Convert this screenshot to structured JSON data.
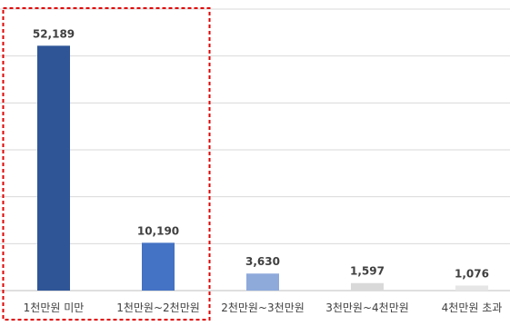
{
  "chart_data": {
    "type": "bar",
    "title": "",
    "xlabel": "",
    "ylabel": "",
    "ylim": [
      0,
      60000
    ],
    "grid": true,
    "categories": [
      "1천만원 미만",
      "1천만원~2천만원",
      "2천만원~3천만원",
      "3천만원~4천만원",
      "4천만원 초과"
    ],
    "values": [
      52189,
      10190,
      3630,
      1597,
      1076
    ],
    "data_labels": [
      "52,189",
      "10,190",
      "3,630",
      "1,597",
      "1,076"
    ],
    "bar_colors": [
      "#2f5597",
      "#4472c4",
      "#8eaadb",
      "#d9d9d9",
      "#e7e6e6"
    ],
    "highlight": {
      "categories": [
        "1천만원 미만",
        "1천만원~2천만원"
      ],
      "color": "#e00000",
      "style": "dashed"
    }
  }
}
